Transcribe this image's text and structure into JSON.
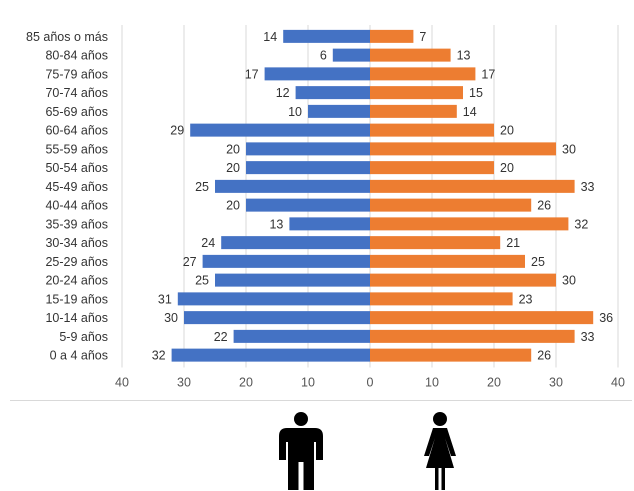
{
  "chart_data": {
    "type": "bar",
    "orientation": "horizontal-diverging",
    "categories": [
      "85 años o más",
      "80-84 años",
      "75-79 años",
      "70-74 años",
      "65-69 años",
      "60-64 años",
      "55-59 años",
      "50-54 años",
      "45-49 años",
      "40-44 años",
      "35-39 años",
      "30-34 años",
      "25-29 años",
      "20-24 años",
      "15-19 años",
      "10-14 años",
      "5-9 años",
      "0 a 4 años"
    ],
    "series": [
      {
        "color": "#4472C4",
        "values": [
          14,
          6,
          17,
          12,
          10,
          29,
          20,
          20,
          25,
          20,
          13,
          24,
          27,
          25,
          31,
          30,
          22,
          32
        ]
      },
      {
        "color": "#ED7D31",
        "values": [
          7,
          13,
          17,
          15,
          14,
          20,
          30,
          20,
          33,
          26,
          32,
          21,
          25,
          30,
          23,
          36,
          33,
          26
        ]
      }
    ],
    "xlim": [
      -40,
      40
    ],
    "xticks": [
      -40,
      -30,
      -20,
      -10,
      0,
      10,
      20,
      30,
      40
    ],
    "xtick_labels": [
      "40",
      "30",
      "20",
      "10",
      "0",
      "10",
      "20",
      "30",
      "40"
    ],
    "grid": true,
    "legend": "icons-below"
  },
  "icons": {
    "left": "male-figure-icon",
    "right": "female-figure-icon"
  }
}
